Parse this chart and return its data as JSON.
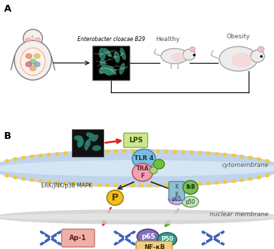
{
  "panel_a_label": "A",
  "panel_b_label": "B",
  "bacteria_label": "Enterobacter cloacae B29",
  "healthy_label": "Healthy",
  "obesity_label": "Obesity",
  "cytomembrane_label": "cytomembrane",
  "nuclear_membrane_label": "nuclear membrane",
  "lps_label": "LPS",
  "tlr4_label": "TLR 4",
  "traf_label": "TRA\nF",
  "erk_label": "ERK/JNK/p38 MAPK",
  "p_label": "P",
  "ap1_label": "Ap-1",
  "nfkb_label": "NF-κB",
  "p65_label1": "p65",
  "p65_label2": "p65",
  "p50_label1": "p50",
  "p50_label2": "P50",
  "ikb_label": "IkB",
  "kk_label": "K\nK",
  "bg_color": "#ffffff",
  "cyto_color": "#b8cfe8",
  "cyto_dot_color": "#f2c840",
  "tlr4_color": "#7bbcdc",
  "traf_color": "#f0a0b0",
  "lps_color": "#cce88a",
  "p_color": "#f0c020",
  "ap1_color": "#f0b0a8",
  "nfkb_color": "#f0d080",
  "p65_nuc_color": "#8070b8",
  "p50_nuc_color": "#30a090",
  "p65_cyt_color": "#c8b8e8",
  "p50_cyt_color": "#c8e0b8",
  "ikb_color": "#78c050",
  "kk_color": "#90c0d0",
  "dna_color": "#4060b8",
  "green_mol_color": "#70c040",
  "red_arrow": "#e02020",
  "black_arrow": "#202020",
  "green_arrow": "#60a820"
}
